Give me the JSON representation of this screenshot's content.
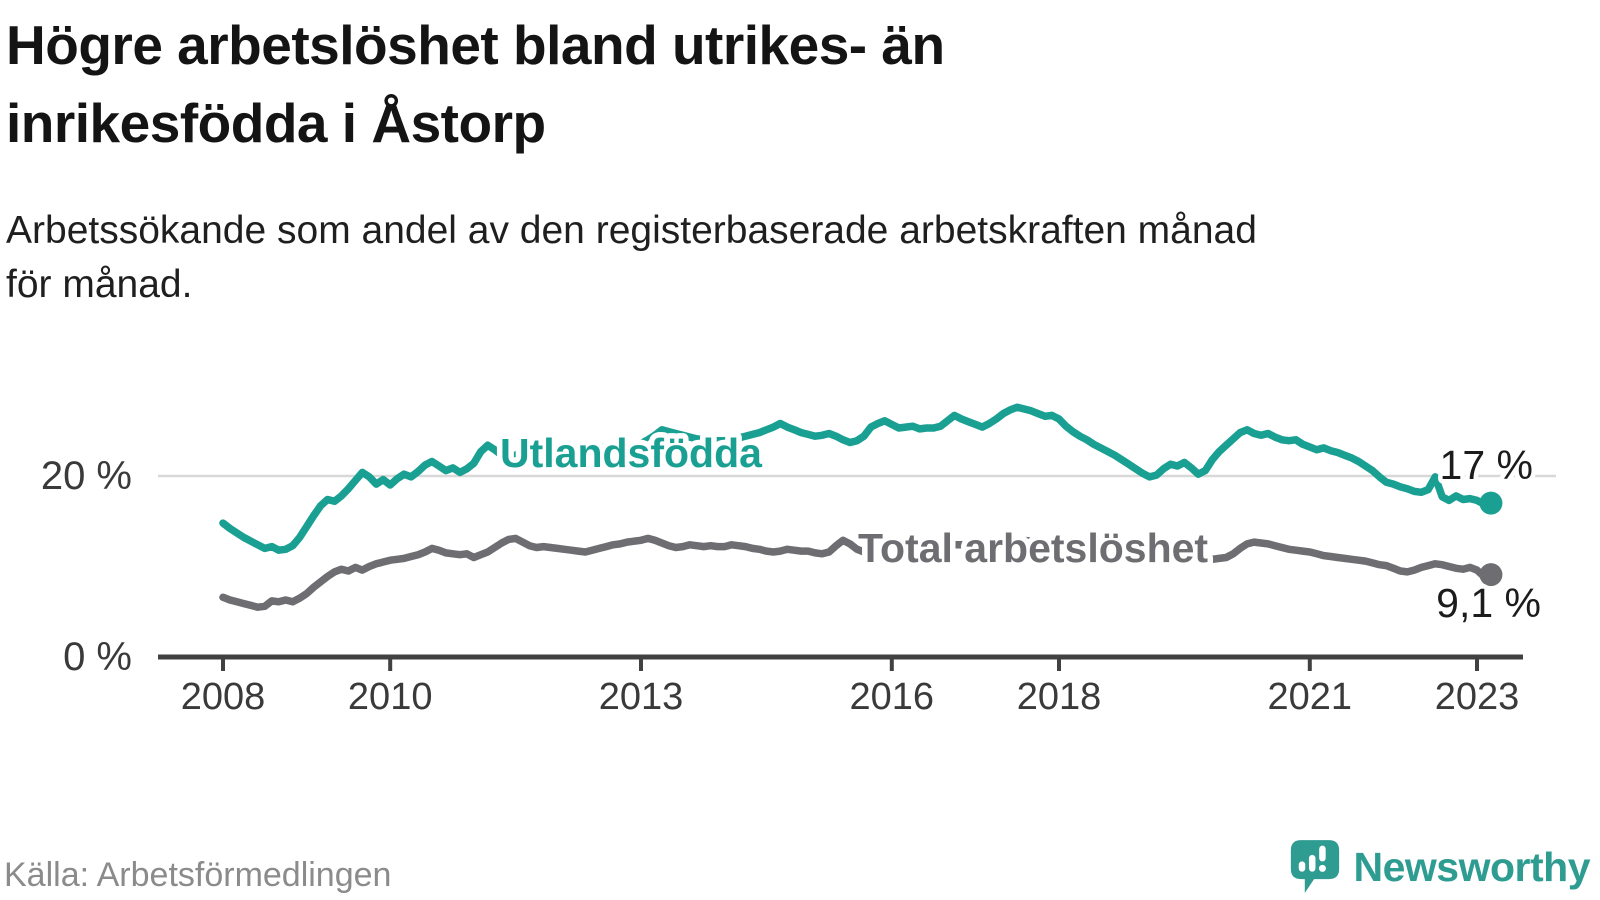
{
  "header": {
    "title_lines": [
      "Högre arbetslöshet bland utrikes- än",
      "inrikesfödda i Åstorp"
    ],
    "subtitle_lines": [
      "Arbetssökande som andel av den registerbaserade arbetskraften månad",
      "för månad."
    ]
  },
  "footer": {
    "source": "Källa: Arbetsförmedlingen",
    "brand": "Newsworthy"
  },
  "colors": {
    "teal": "#1aa093",
    "gray": "#6e6e72",
    "brand": "#2f9c92",
    "grid": "#d8d8d8",
    "axis": "#414141",
    "tick_text": "#3a3a3a",
    "label_text": "#1c1c1c"
  },
  "chart_data": {
    "type": "line",
    "unit": "%",
    "x_unit": "monthly, decimal years",
    "x_start": 2008.0,
    "x_step_months": 1,
    "x_range": [
      2008.0,
      2023.17
    ],
    "ylim": [
      0,
      30
    ],
    "grid": "horizontal, 20% only",
    "legend_position": "inline labels on lines",
    "x_ticks": [
      {
        "t": 2008,
        "label": "2008"
      },
      {
        "t": 2010,
        "label": "2010"
      },
      {
        "t": 2013,
        "label": "2013"
      },
      {
        "t": 2016,
        "label": "2016"
      },
      {
        "t": 2018,
        "label": "2018"
      },
      {
        "t": 2021,
        "label": "2021"
      },
      {
        "t": 2023,
        "label": "2023"
      }
    ],
    "y_ticks": [
      {
        "v": 0,
        "label": "0 %"
      },
      {
        "v": 20,
        "label": "20 %"
      }
    ],
    "series": [
      {
        "name": "Utlandsfödda",
        "color": "#1aa093",
        "end_label": "17 %",
        "end_value": 17.0,
        "values": [
          14.8,
          14.2,
          13.7,
          13.2,
          12.8,
          12.4,
          12.0,
          12.2,
          11.8,
          11.9,
          12.3,
          13.2,
          14.4,
          15.6,
          16.7,
          17.4,
          17.2,
          17.8,
          18.6,
          19.5,
          20.4,
          19.9,
          19.1,
          19.6,
          19.0,
          19.7,
          20.2,
          19.9,
          20.5,
          21.2,
          21.6,
          21.1,
          20.6,
          20.9,
          20.4,
          20.8,
          21.4,
          22.7,
          23.4,
          22.9,
          22.3,
          21.9,
          22.3,
          22.7,
          22.4,
          22.0,
          22.2,
          22.5,
          22.8,
          22.9,
          23.0,
          23.2,
          23.3,
          23.2,
          23.1,
          23.2,
          23.4,
          23.3,
          23.2,
          23.4,
          23.6,
          24.0,
          24.5,
          25.1,
          24.9,
          24.7,
          24.5,
          24.3,
          24.1,
          24.0,
          23.9,
          23.9,
          23.9,
          24.0,
          24.2,
          24.4,
          24.6,
          24.8,
          25.1,
          25.4,
          25.8,
          25.4,
          25.1,
          24.8,
          24.6,
          24.4,
          24.5,
          24.7,
          24.4,
          24.0,
          23.7,
          23.9,
          24.4,
          25.4,
          25.8,
          26.1,
          25.7,
          25.3,
          25.4,
          25.5,
          25.2,
          25.3,
          25.3,
          25.5,
          26.1,
          26.7,
          26.3,
          26.0,
          25.7,
          25.4,
          25.8,
          26.3,
          26.9,
          27.3,
          27.6,
          27.4,
          27.2,
          26.9,
          26.6,
          26.7,
          26.3,
          25.5,
          24.9,
          24.4,
          24.0,
          23.5,
          23.1,
          22.7,
          22.3,
          21.8,
          21.3,
          20.8,
          20.3,
          19.9,
          20.1,
          20.8,
          21.3,
          21.1,
          21.5,
          20.9,
          20.2,
          20.6,
          21.8,
          22.7,
          23.4,
          24.1,
          24.8,
          25.1,
          24.7,
          24.5,
          24.7,
          24.3,
          24.0,
          23.9,
          24.0,
          23.5,
          23.2,
          22.9,
          23.1,
          22.8,
          22.6,
          22.3,
          22.0,
          21.6,
          21.1,
          20.6,
          19.9,
          19.3,
          19.1,
          18.8,
          18.6,
          18.3,
          18.2,
          18.5,
          19.9,
          17.7,
          17.3,
          17.8,
          17.4,
          17.5,
          17.3,
          16.9,
          17.0
        ]
      },
      {
        "name": "Total arbetslöshet",
        "color": "#6e6e72",
        "end_label": "9,1 %",
        "end_value": 9.1,
        "values": [
          6.6,
          6.3,
          6.1,
          5.9,
          5.7,
          5.5,
          5.6,
          6.2,
          6.1,
          6.3,
          6.1,
          6.5,
          7.0,
          7.7,
          8.3,
          8.9,
          9.4,
          9.7,
          9.5,
          9.9,
          9.6,
          10.0,
          10.3,
          10.5,
          10.7,
          10.8,
          10.9,
          11.1,
          11.3,
          11.6,
          12.0,
          11.8,
          11.5,
          11.4,
          11.3,
          11.4,
          11.0,
          11.3,
          11.6,
          12.1,
          12.6,
          13.0,
          13.1,
          12.7,
          12.3,
          12.1,
          12.2,
          12.1,
          12.0,
          11.9,
          11.8,
          11.7,
          11.6,
          11.8,
          12.0,
          12.2,
          12.4,
          12.5,
          12.7,
          12.8,
          12.9,
          13.1,
          12.9,
          12.6,
          12.3,
          12.1,
          12.2,
          12.4,
          12.3,
          12.2,
          12.3,
          12.2,
          12.2,
          12.4,
          12.3,
          12.2,
          12.0,
          11.9,
          11.7,
          11.6,
          11.7,
          11.9,
          11.8,
          11.7,
          11.7,
          11.5,
          11.4,
          11.6,
          12.3,
          12.9,
          12.5,
          11.9,
          11.6,
          11.5,
          11.6,
          11.5,
          11.6,
          11.8,
          12.0,
          12.2,
          12.3,
          12.4,
          12.3,
          12.2,
          12.3,
          12.4,
          12.4,
          12.5,
          12.5,
          12.6,
          12.8,
          12.7,
          12.6,
          12.7,
          12.8,
          12.9,
          12.8,
          12.7,
          12.6,
          12.7,
          12.6,
          12.4,
          12.2,
          12.0,
          11.9,
          11.7,
          11.6,
          11.5,
          11.4,
          11.3,
          11.2,
          11.3,
          11.2,
          11.0,
          10.9,
          10.7,
          10.6,
          10.7,
          10.8,
          10.7,
          10.6,
          10.7,
          10.8,
          10.9,
          11.0,
          11.4,
          12.0,
          12.5,
          12.7,
          12.6,
          12.5,
          12.3,
          12.1,
          11.9,
          11.8,
          11.7,
          11.6,
          11.4,
          11.2,
          11.1,
          11.0,
          10.9,
          10.8,
          10.7,
          10.6,
          10.4,
          10.2,
          10.1,
          9.8,
          9.5,
          9.4,
          9.6,
          9.9,
          10.1,
          10.3,
          10.2,
          10.0,
          9.8,
          9.7,
          9.9,
          9.6,
          8.9,
          9.1
        ]
      }
    ]
  }
}
